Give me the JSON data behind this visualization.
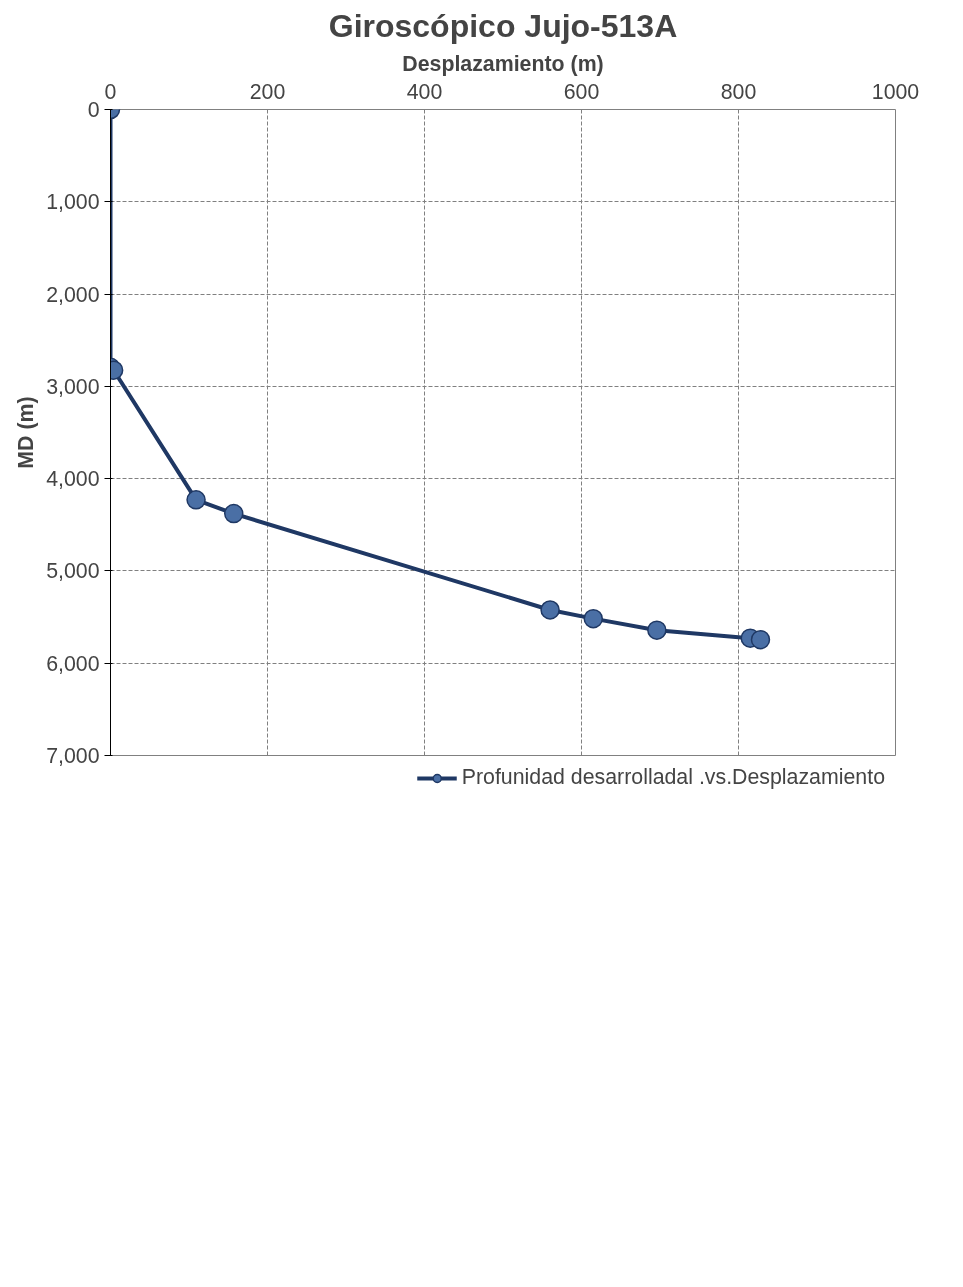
{
  "chart_data": {
    "type": "line",
    "title": "Giroscópico Jujo-513A",
    "xlabel": "Desplazamiento (m)",
    "ylabel": "MD (m)",
    "x": [
      0,
      0,
      4,
      109,
      157,
      560,
      615,
      696,
      815,
      828
    ],
    "series": [
      {
        "name": "Profunidad desarrolladal .vs.Desplazamiento",
        "color": "#1f3864",
        "values": [
          0,
          2794,
          2825,
          4230,
          4379,
          5423,
          5517,
          5642,
          5729,
          5745
        ]
      }
    ],
    "xlim": [
      0,
      1000
    ],
    "xticks": [
      0,
      200,
      400,
      600,
      800,
      1000
    ],
    "ylim": [
      7000,
      0
    ],
    "yticks": [
      {
        "value": 0,
        "label": "0"
      },
      {
        "value": 1000,
        "label": "1,000"
      },
      {
        "value": 2000,
        "label": "2,000"
      },
      {
        "value": 3000,
        "label": "3,000"
      },
      {
        "value": 4000,
        "label": "4,000"
      },
      {
        "value": 5000,
        "label": "5,000"
      },
      {
        "value": 6000,
        "label": "6,000"
      },
      {
        "value": 7000,
        "label": "7,000"
      }
    ],
    "grid": true,
    "legend": "bottom",
    "marker": "circle",
    "line_style": "solid"
  }
}
